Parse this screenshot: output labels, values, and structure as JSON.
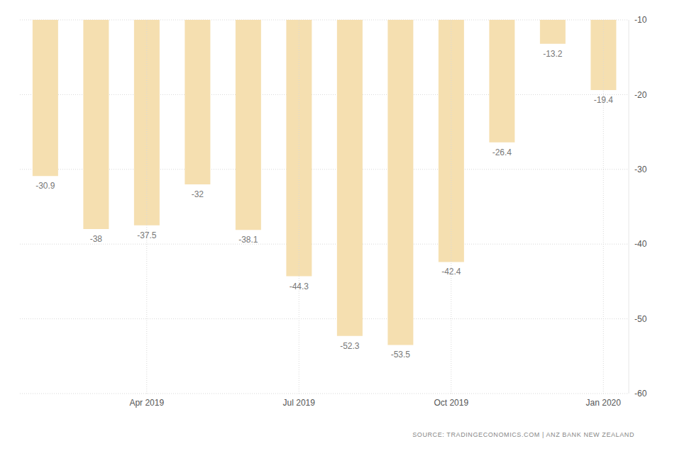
{
  "chart_data": {
    "type": "bar",
    "categories": [
      null,
      null,
      "Apr 2019",
      null,
      null,
      "Jul 2019",
      null,
      null,
      "Oct 2019",
      null,
      null,
      "Jan 2020"
    ],
    "values": [
      -30.9,
      -38,
      -37.5,
      -32,
      -38.1,
      -44.3,
      -52.3,
      -53.5,
      -42.4,
      -26.4,
      -13.2,
      -19.4
    ],
    "color": "#f5dfb0",
    "ylim": [
      -60,
      -10
    ],
    "yticks": [
      -60,
      -50,
      -40,
      -30,
      -20,
      -10
    ],
    "grid": true,
    "data_labels": true,
    "source": "SOURCE: TRADINGECONOMICS.COM | ANZ BANK NEW ZEALAND"
  }
}
